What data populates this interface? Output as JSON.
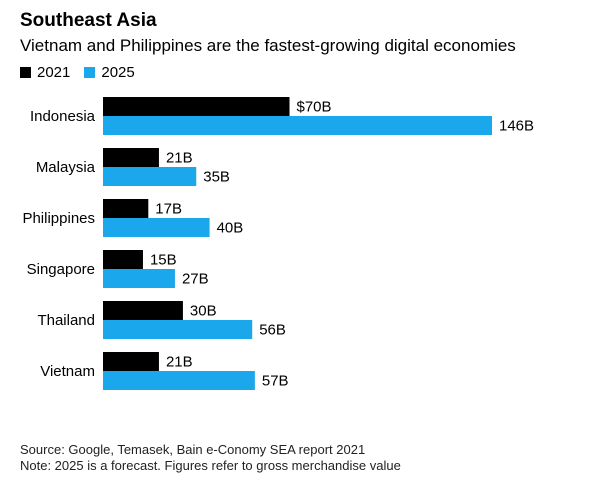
{
  "title": "Southeast Asia",
  "subtitle": "Vietnam and Philippines are the fastest-growing digital economies",
  "source": "Source: Google, Temasek, Bain e-Conomy SEA report 2021",
  "note": "Note: 2025 is a forecast. Figures refer to gross merchandise value",
  "chart_data": {
    "type": "bar",
    "orientation": "horizontal",
    "categories": [
      "Indonesia",
      "Malaysia",
      "Philippines",
      "Singapore",
      "Thailand",
      "Vietnam"
    ],
    "series": [
      {
        "name": "2021",
        "color": "#000000",
        "values": [
          70,
          21,
          17,
          15,
          30,
          21
        ],
        "labels": [
          "$70B",
          "21B",
          "17B",
          "15B",
          "30B",
          "21B"
        ]
      },
      {
        "name": "2025",
        "color": "#1aa7ec",
        "values": [
          146,
          35,
          40,
          27,
          56,
          57
        ],
        "labels": [
          "146B",
          "35B",
          "40B",
          "27B",
          "56B",
          "57B"
        ]
      }
    ],
    "unit": "$B",
    "legend": "top-left",
    "grid": false
  }
}
